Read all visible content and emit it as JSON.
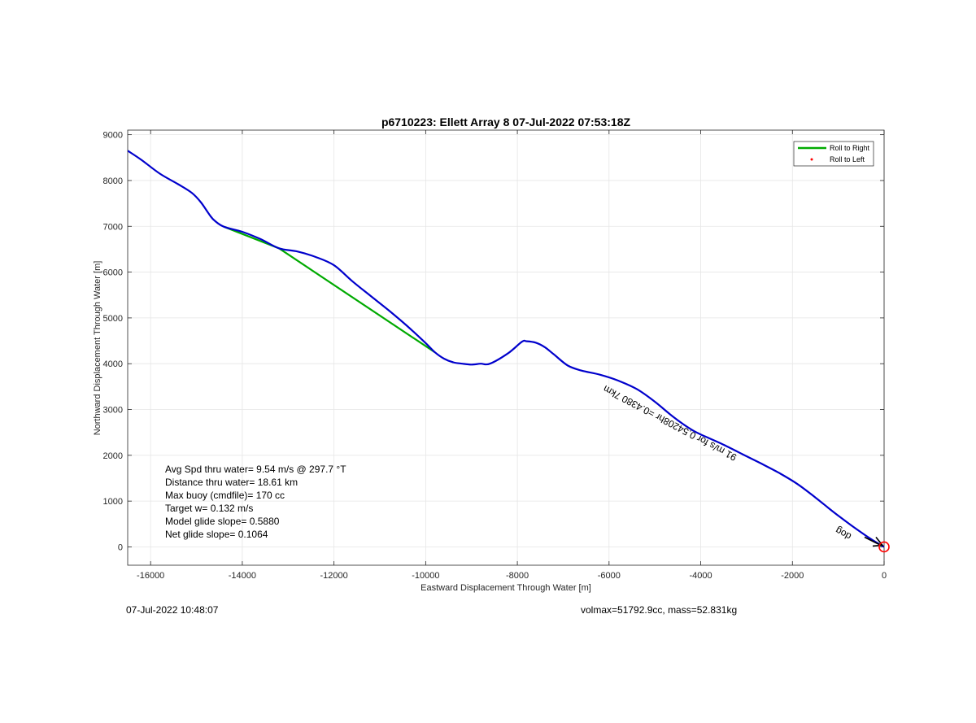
{
  "footer": {
    "timestamp": "07-Jul-2022 10:48:07",
    "vehicle": "volmax=51792.9cc, mass=52.831kg"
  },
  "chart_data": {
    "type": "line",
    "title": "p6710223: Ellett Array 8 07-Jul-2022 07:53:18Z",
    "xlabel": "Eastward Displacement Through Water [m]",
    "ylabel": "Northward Displacement Through Water [m]",
    "xlim": [
      -16500,
      0
    ],
    "ylim": [
      -400,
      9100
    ],
    "xticks": [
      -16000,
      -14000,
      -12000,
      -10000,
      -8000,
      -6000,
      -4000,
      -2000,
      0
    ],
    "yticks": [
      0,
      1000,
      2000,
      3000,
      4000,
      5000,
      6000,
      7000,
      8000,
      9000
    ],
    "grid": true,
    "legend": {
      "placement": "top-right",
      "entries": [
        {
          "label": "Roll to Right",
          "color": "#00aa00",
          "marker": "line"
        },
        {
          "label": "Roll to Left",
          "color": "#ff0000",
          "marker": "dot"
        }
      ]
    },
    "series": [
      {
        "role": "track",
        "color": "#0000cc",
        "x": [
          -16500,
          -16200,
          -15800,
          -15400,
          -15100,
          -14900,
          -14700,
          -14600,
          -14400,
          -14000,
          -13600,
          -13200,
          -12800,
          -12400,
          -12000,
          -11600,
          -11200,
          -10800,
          -10400,
          -10000,
          -9800,
          -9600,
          -9400,
          -9200,
          -9000,
          -8800,
          -8600,
          -8200,
          -7900,
          -7800,
          -7600,
          -7400,
          -7200,
          -6900,
          -6600,
          -6200,
          -5800,
          -5400,
          -5000,
          -4600,
          -4200,
          -3900,
          -3500,
          -3100,
          -2700,
          -2300,
          -1900,
          -1500,
          -1100,
          -700,
          -300,
          0
        ],
        "y": [
          8650,
          8450,
          8150,
          7920,
          7730,
          7520,
          7230,
          7120,
          6990,
          6880,
          6720,
          6520,
          6450,
          6330,
          6150,
          5800,
          5480,
          5160,
          4820,
          4450,
          4250,
          4110,
          4030,
          4000,
          3980,
          4000,
          4000,
          4230,
          4480,
          4490,
          4460,
          4360,
          4200,
          3960,
          3850,
          3760,
          3630,
          3450,
          3170,
          2840,
          2560,
          2410,
          2230,
          2030,
          1830,
          1620,
          1380,
          1080,
          760,
          460,
          180,
          0
        ]
      },
      {
        "role": "roll-right",
        "color": "#00aa00",
        "x": [
          -14400,
          -13200,
          -9800
        ],
        "y": [
          6990,
          6520,
          4250
        ]
      }
    ],
    "stats": [
      "Avg Spd thru water=  9.54 m/s @ 297.7 °T",
      "Distance thru water= 18.61 km",
      "Max buoy (cmdfile)= 170 cc",
      "Target w= 0.132 m/s",
      "Model glide slope= 0.5880",
      "Net glide slope= 0.1064"
    ],
    "annotation": {
      "text": "dog",
      "x": -700,
      "y": 270,
      "rotation_deg": 208
    },
    "overlay_text": {
      "text": "91 m/s for 0.54208hr =0.4380 7km",
      "x": -3200,
      "y": 2000,
      "rotation_deg": 208
    },
    "end_marker": {
      "x": 0,
      "y": 0,
      "color": "#ff0000"
    }
  }
}
